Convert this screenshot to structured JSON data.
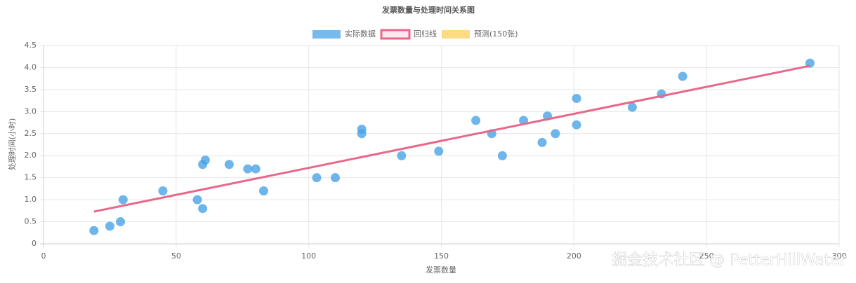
{
  "chart_data": {
    "type": "scatter",
    "title": "发票数量与处理时间关系图",
    "x_label": "发票数量",
    "y_label": "处理时间(小时)",
    "watermark": "掘金技术社区 @ PetterHillWater",
    "xlim": [
      0,
      300
    ],
    "xticks": [
      0,
      50,
      100,
      150,
      200,
      250,
      300
    ],
    "ylim": [
      0,
      4.5
    ],
    "yticks": [
      0,
      0.5,
      {
        "value": 1,
        "label": "1.0"
      },
      1.5,
      {
        "value": 2,
        "label": "2.0"
      },
      2.5,
      {
        "value": 3,
        "label": "3.0"
      },
      3.5,
      {
        "value": 4,
        "label": "4.0"
      },
      4.5
    ],
    "grid": true,
    "legend": "top",
    "series": [
      {
        "name": "实际数据",
        "type": "scatter",
        "color": "#4aa3e6",
        "x": [
          19,
          25,
          29,
          30,
          45,
          58,
          60,
          60,
          61,
          70,
          77,
          80,
          83,
          103,
          110,
          120,
          120,
          135,
          149,
          163,
          169,
          173,
          181,
          188,
          190,
          193,
          201,
          201,
          222,
          233,
          241,
          289
        ],
        "values": [
          0.3,
          0.4,
          0.5,
          1.0,
          1.2,
          1.0,
          0.8,
          1.8,
          1.9,
          1.8,
          1.7,
          1.7,
          1.2,
          1.5,
          1.5,
          2.6,
          2.5,
          2.0,
          2.1,
          2.8,
          2.5,
          2.0,
          2.8,
          2.3,
          2.9,
          2.5,
          3.3,
          2.7,
          3.1,
          3.4,
          3.8,
          4.1
        ]
      },
      {
        "name": "回归线",
        "type": "line",
        "color": "#e8688a",
        "x": [
          19,
          289
        ],
        "values": [
          0.73,
          4.04
        ]
      },
      {
        "name": "预测(150张)",
        "type": "scatter",
        "color": "#fcce5b",
        "x": [],
        "values": []
      }
    ]
  }
}
